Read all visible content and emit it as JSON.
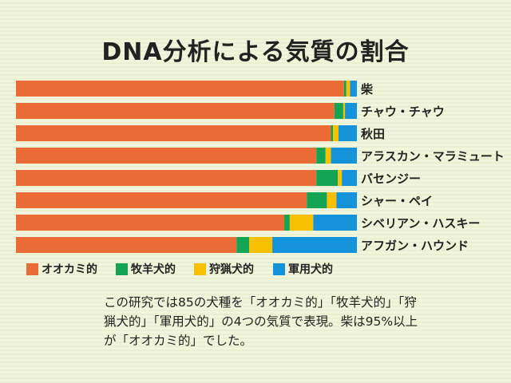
{
  "chart_data": {
    "type": "bar",
    "orientation": "horizontal",
    "stacked": true,
    "title": "DNA分析による気質の割合",
    "categories": [
      "柴",
      "チャウ・チャウ",
      "秋田",
      "アラスカン・マラミュート",
      "バセンジー",
      "シャー・ペイ",
      "シベリアン・ハスキー",
      "アフガン・ハウンド"
    ],
    "series": [
      {
        "name": "オオカミ的",
        "color": "#eb6b36",
        "values": [
          96.2,
          93.4,
          92.4,
          88.1,
          88.1,
          85.3,
          78.7,
          64.7
        ]
      },
      {
        "name": "牧羊犬的",
        "color": "#13a454",
        "values": [
          0.7,
          2.6,
          0.6,
          2.7,
          6.3,
          5.9,
          1.6,
          3.7
        ]
      },
      {
        "name": "狩猟犬的",
        "color": "#f8c000",
        "values": [
          1.1,
          0.5,
          1.6,
          1.6,
          1.2,
          2.8,
          6.9,
          6.8
        ]
      },
      {
        "name": "軍用犬的",
        "color": "#1493db",
        "values": [
          2.0,
          3.5,
          5.4,
          7.6,
          4.4,
          6.0,
          12.8,
          24.8
        ]
      }
    ],
    "xlim": [
      0,
      100
    ],
    "grid": false,
    "legend_position": "bottom-left"
  },
  "note": "この研究では85の犬種を「オオカミ的」「牧羊犬的」「狩猟犬的」「軍用犬的」の4つの気質で表現。柴は95%以上が「オオカミ的」でした。"
}
